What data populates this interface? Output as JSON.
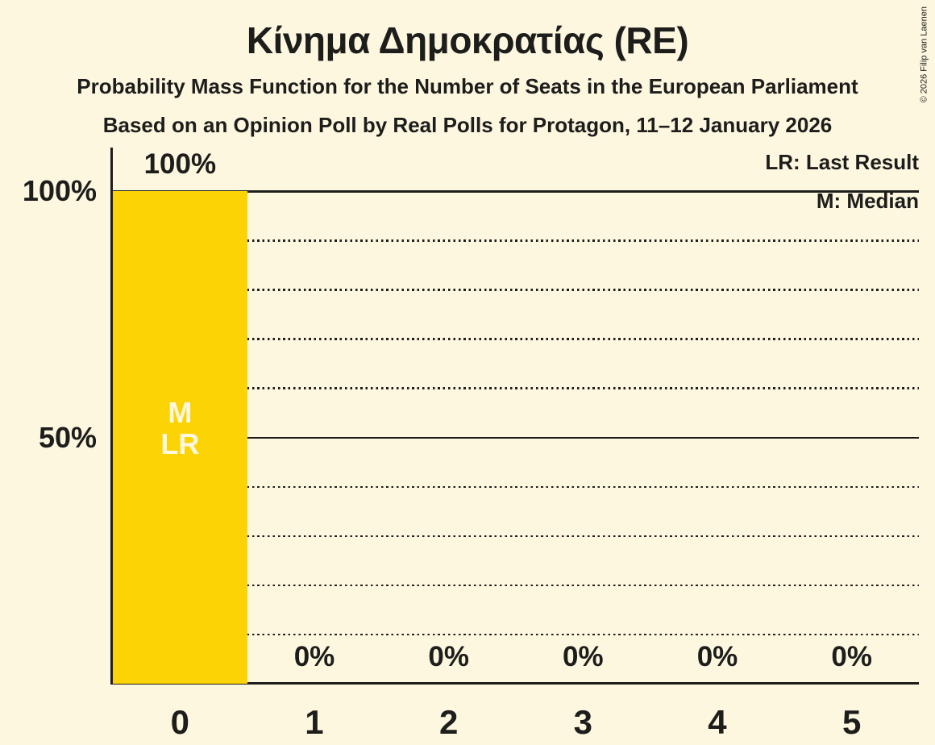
{
  "title": "Κίνημα Δημοκρατίας (RE)",
  "subtitle": "Probability Mass Function for the Number of Seats in the European Parliament",
  "poll_info": "Based on an Opinion Poll by Real Polls for Protagon, 11–12 January 2026",
  "copyright": "© 2026 Filip van Laenen",
  "legend": {
    "lr": "LR: Last Result",
    "m": "M: Median"
  },
  "colors": {
    "background": "#FDF7E0",
    "bar": "#FCD406",
    "ink": "#1D1D1B",
    "bar_label_text": "#FDF7E0"
  },
  "chart_data": {
    "type": "bar",
    "title": "Κίνημα Δημοκρατίας (RE)",
    "categories": [
      "0",
      "1",
      "2",
      "3",
      "4",
      "5"
    ],
    "values": [
      100,
      0,
      0,
      0,
      0,
      0
    ],
    "value_labels": [
      "100%",
      "0%",
      "0%",
      "0%",
      "0%",
      "0%"
    ],
    "bar_annotations": [
      [
        "M",
        "LR"
      ],
      [],
      [],
      [],
      [],
      []
    ],
    "xlabel": "",
    "ylabel": "",
    "ylim": [
      0,
      100
    ],
    "yticks": [
      {
        "value": 100,
        "label": "100%"
      },
      {
        "value": 50,
        "label": "50%"
      }
    ],
    "solid_gridlines": [
      100,
      50
    ],
    "dotted_gridlines": [
      90,
      80,
      70,
      60,
      40,
      30,
      20,
      10
    ],
    "grid": "horizontal",
    "legend_position": "top-right"
  }
}
